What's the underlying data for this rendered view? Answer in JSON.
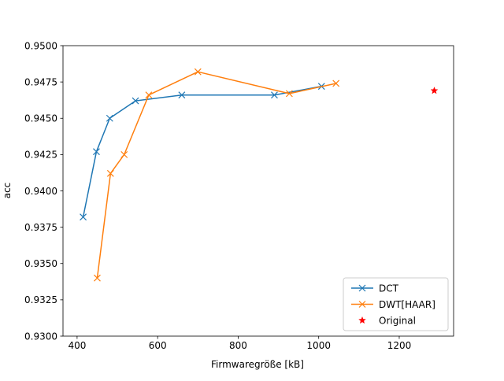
{
  "chart_data": {
    "type": "line",
    "title": "",
    "xlabel": "Firmwaregröße [kB]",
    "ylabel": "acc",
    "xlim": [
      365,
      1335
    ],
    "ylim": [
      0.93,
      0.95
    ],
    "xticks": [
      400,
      600,
      800,
      1000,
      1200
    ],
    "xtick_labels": [
      "400",
      "600",
      "800",
      "1000",
      "1200"
    ],
    "yticks": [
      0.93,
      0.9325,
      0.935,
      0.9375,
      0.94,
      0.9425,
      0.945,
      0.9475,
      0.95
    ],
    "ytick_labels": [
      "0.9300",
      "0.9325",
      "0.9350",
      "0.9375",
      "0.9400",
      "0.9425",
      "0.9450",
      "0.9475",
      "0.9500"
    ],
    "grid": false,
    "legend_position": "lower-right",
    "series": [
      {
        "name": "DCT",
        "color": "#1f77b4",
        "marker": "x",
        "points": [
          {
            "x": 415,
            "y": 0.9382
          },
          {
            "x": 448,
            "y": 0.9427
          },
          {
            "x": 481,
            "y": 0.945
          },
          {
            "x": 545,
            "y": 0.9462
          },
          {
            "x": 660,
            "y": 0.9466
          },
          {
            "x": 890,
            "y": 0.9466
          },
          {
            "x": 1007,
            "y": 0.9472
          }
        ]
      },
      {
        "name": "DWT[HAAR]",
        "color": "#ff7f0e",
        "marker": "x",
        "points": [
          {
            "x": 450,
            "y": 0.934
          },
          {
            "x": 483,
            "y": 0.9412
          },
          {
            "x": 517,
            "y": 0.9425
          },
          {
            "x": 578,
            "y": 0.9466
          },
          {
            "x": 700,
            "y": 0.9482
          },
          {
            "x": 927,
            "y": 0.9467
          },
          {
            "x": 1043,
            "y": 0.9474
          }
        ]
      },
      {
        "name": "Original",
        "color": "#ff0000",
        "marker": "star",
        "points": [
          {
            "x": 1287,
            "y": 0.9469
          }
        ]
      }
    ]
  }
}
